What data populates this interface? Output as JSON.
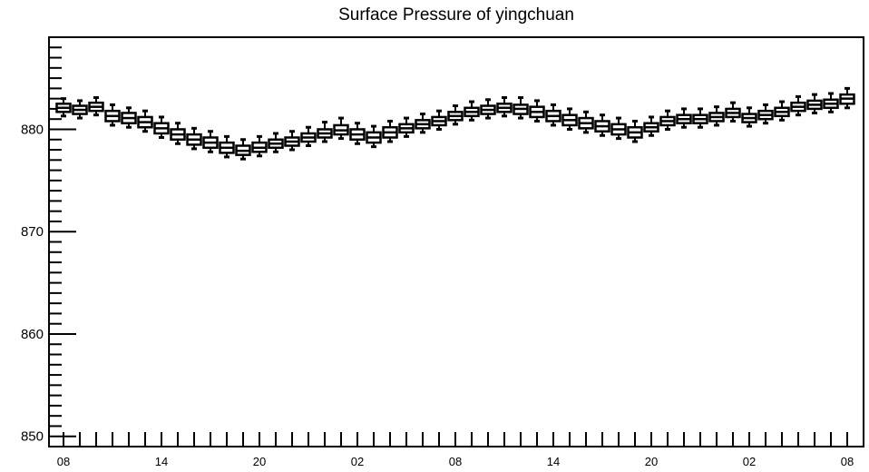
{
  "chart_data": {
    "type": "boxplot",
    "title": "Surface Pressure of yingchuan",
    "xlabel": "",
    "ylabel": "",
    "ylim": [
      849,
      889
    ],
    "yticks": [
      850,
      860,
      870,
      880
    ],
    "xtick_labels": [
      "08",
      "14",
      "20",
      "02",
      "08",
      "14",
      "20",
      "02",
      "08"
    ],
    "xtick_label_index": [
      0,
      6,
      12,
      18,
      24,
      30,
      36,
      42,
      48
    ],
    "grid": false,
    "series": [
      {
        "medians": [
          882.1,
          881.9,
          882.2,
          881.3,
          881.1,
          880.7,
          880.1,
          879.5,
          879.0,
          878.7,
          878.2,
          877.9,
          878.2,
          878.6,
          878.8,
          879.2,
          879.6,
          879.9,
          879.5,
          879.2,
          879.7,
          880.1,
          880.5,
          880.8,
          881.3,
          881.7,
          881.9,
          882.1,
          882.0,
          881.7,
          881.3,
          880.9,
          880.6,
          880.3,
          880.0,
          879.7,
          880.2,
          880.8,
          881.0,
          881.0,
          881.2,
          881.6,
          881.1,
          881.4,
          881.7,
          882.2,
          882.4,
          882.5,
          883.0
        ],
        "q1": [
          881.7,
          881.5,
          881.8,
          880.8,
          880.6,
          880.2,
          879.6,
          879.0,
          878.5,
          878.2,
          877.7,
          877.5,
          877.8,
          878.2,
          878.4,
          878.8,
          879.2,
          879.5,
          879.0,
          878.7,
          879.2,
          879.7,
          880.1,
          880.4,
          880.9,
          881.3,
          881.5,
          881.7,
          881.5,
          881.2,
          880.8,
          880.4,
          880.1,
          879.8,
          879.5,
          879.2,
          879.8,
          880.4,
          880.6,
          880.6,
          880.8,
          881.2,
          880.7,
          881.0,
          881.3,
          881.8,
          882.0,
          882.1,
          882.5
        ],
        "q3": [
          882.5,
          882.3,
          882.6,
          881.8,
          881.6,
          881.2,
          880.6,
          880.0,
          879.5,
          879.2,
          878.7,
          878.4,
          878.7,
          879.0,
          879.2,
          879.6,
          880.0,
          880.4,
          880.0,
          879.7,
          880.2,
          880.5,
          880.9,
          881.2,
          881.7,
          882.1,
          882.3,
          882.5,
          882.4,
          882.2,
          881.8,
          881.4,
          881.1,
          880.8,
          880.5,
          880.2,
          880.6,
          881.2,
          881.4,
          881.4,
          881.6,
          882.0,
          881.5,
          881.8,
          882.1,
          882.6,
          882.8,
          882.9,
          883.4
        ],
        "whisker_low": [
          881.3,
          881.1,
          881.4,
          880.4,
          880.2,
          879.8,
          879.2,
          878.6,
          878.1,
          877.8,
          877.3,
          877.1,
          877.4,
          877.8,
          878.0,
          878.4,
          878.8,
          879.1,
          878.6,
          878.3,
          878.8,
          879.3,
          879.7,
          880.0,
          880.5,
          880.9,
          881.1,
          881.3,
          881.1,
          880.8,
          880.4,
          880.0,
          879.7,
          879.4,
          879.1,
          878.8,
          879.4,
          880.0,
          880.2,
          880.2,
          880.4,
          880.8,
          880.3,
          880.6,
          880.9,
          881.4,
          881.6,
          881.7,
          882.1
        ],
        "whisker_high": [
          883.0,
          882.8,
          883.1,
          882.4,
          882.1,
          881.8,
          881.2,
          880.6,
          880.1,
          879.8,
          879.3,
          879.0,
          879.3,
          879.6,
          879.8,
          880.2,
          880.7,
          881.1,
          880.6,
          880.3,
          880.8,
          881.1,
          881.5,
          881.8,
          882.3,
          882.7,
          882.9,
          883.1,
          883.1,
          882.8,
          882.4,
          882.0,
          881.7,
          881.4,
          881.1,
          880.8,
          881.2,
          881.8,
          882.0,
          882.0,
          882.2,
          882.6,
          882.1,
          882.4,
          882.7,
          883.2,
          883.4,
          883.5,
          884.0
        ]
      }
    ]
  }
}
